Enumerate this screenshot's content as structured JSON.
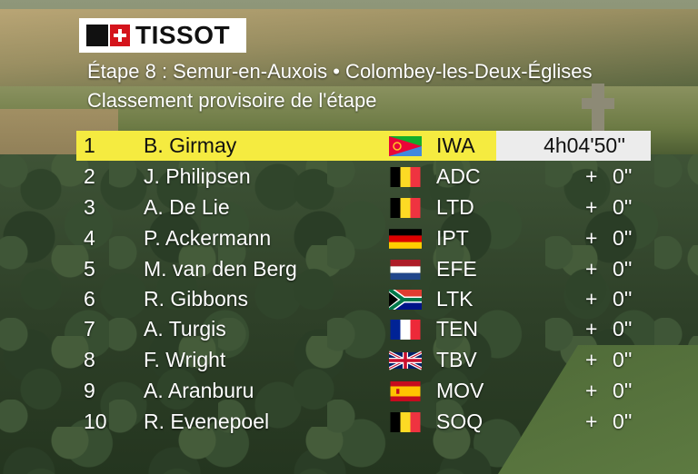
{
  "brand": {
    "logo_text": "TISSOT"
  },
  "stage": {
    "title": "Étape 8 : Semur-en-Auxois • Colombey-les-Deux-Églises",
    "subtitle": "Classement provisoire de l'étape"
  },
  "rows": [
    {
      "pos": "1",
      "name": "B. Girmay",
      "flag": "eritrea",
      "team": "IWA",
      "time": "4h04'50''"
    },
    {
      "pos": "2",
      "name": "J. Philipsen",
      "flag": "belgium",
      "team": "ADC",
      "plus": "+",
      "gap": "0''"
    },
    {
      "pos": "3",
      "name": "A. De Lie",
      "flag": "belgium",
      "team": "LTD",
      "plus": "+",
      "gap": "0''"
    },
    {
      "pos": "4",
      "name": "P. Ackermann",
      "flag": "germany",
      "team": "IPT",
      "plus": "+",
      "gap": "0''"
    },
    {
      "pos": "5",
      "name": "M. van den Berg",
      "flag": "netherlands",
      "team": "EFE",
      "plus": "+",
      "gap": "0''"
    },
    {
      "pos": "6",
      "name": "R. Gibbons",
      "flag": "south-africa",
      "team": "LTK",
      "plus": "+",
      "gap": "0''"
    },
    {
      "pos": "7",
      "name": "A. Turgis",
      "flag": "france",
      "team": "TEN",
      "plus": "+",
      "gap": "0''"
    },
    {
      "pos": "8",
      "name": "F. Wright",
      "flag": "united-kingdom",
      "team": "TBV",
      "plus": "+",
      "gap": "0''"
    },
    {
      "pos": "9",
      "name": "A. Aranburu",
      "flag": "spain",
      "team": "MOV",
      "plus": "+",
      "gap": "0''"
    },
    {
      "pos": "10",
      "name": "R. Evenepoel",
      "flag": "belgium",
      "team": "SOQ",
      "plus": "+",
      "gap": "0''"
    }
  ],
  "colors": {
    "leader_highlight": "#f5eb40",
    "time_box": "#ececec",
    "logo_red": "#d4141c"
  }
}
